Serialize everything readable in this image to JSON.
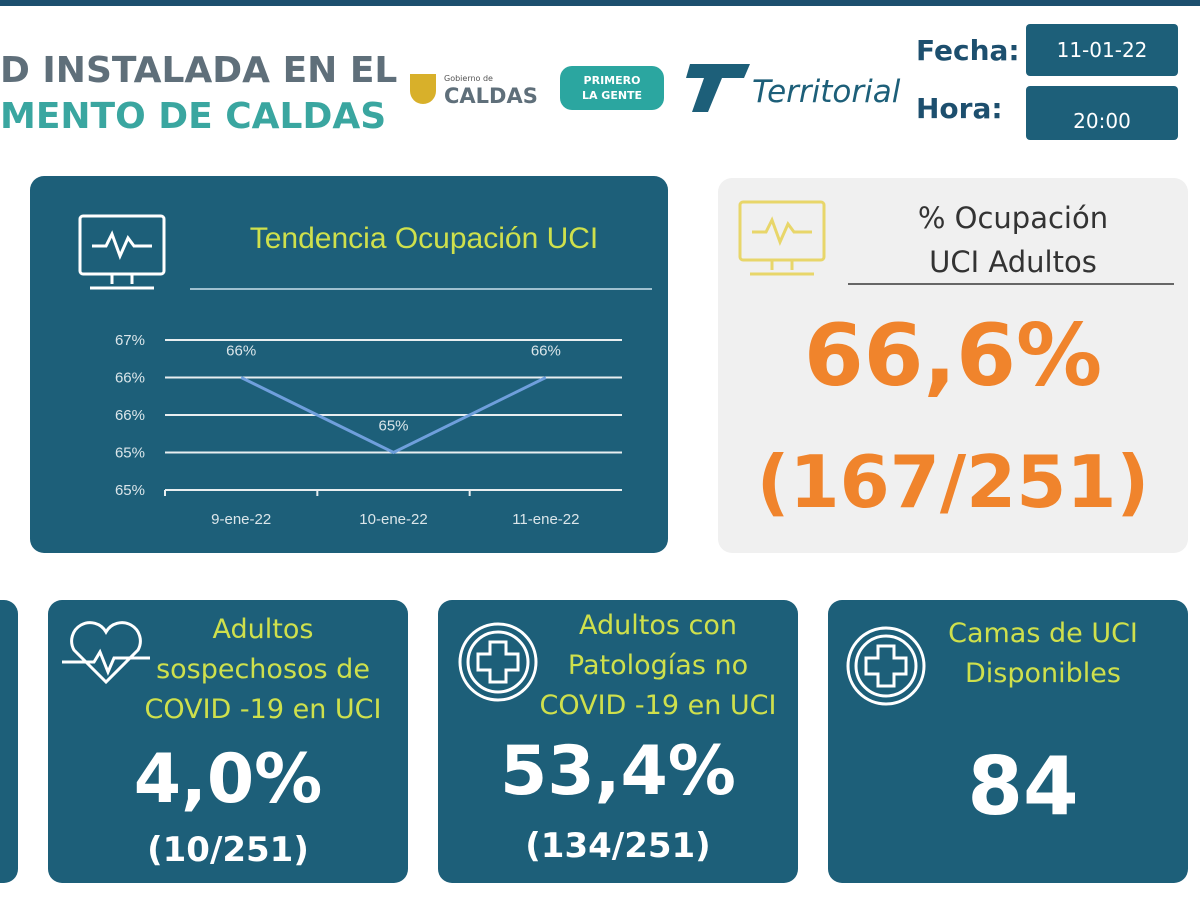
{
  "header": {
    "title_line1": "D INSTALADA EN EL",
    "title_line2": "MENTO DE CALDAS",
    "logo_gob_small": "Gobierno de",
    "logo_gob": "CALDAS",
    "logo_primero": "PRIMERO",
    "logo_gente": "LA GENTE",
    "logo_territorial": "Territorial",
    "fecha_label": "Fecha:",
    "fecha": "11-01-22",
    "hora_label": "Hora:",
    "hora": "20:00"
  },
  "trend": {
    "chart_data": {
      "type": "line",
      "title": "Tendencia Ocupación UCI",
      "categories": [
        "9-ene-22",
        "10-ene-22",
        "11-ene-22"
      ],
      "values": [
        66.2,
        65.4,
        66.2
      ],
      "value_labels": [
        "66%",
        "65%",
        "66%"
      ],
      "color": "#6f9fdc",
      "ylim": [
        65.0,
        66.6
      ],
      "yticks": [
        {
          "value": 65.0,
          "label": "65%"
        },
        {
          "value": 65.4,
          "label": "65%"
        },
        {
          "value": 65.8,
          "label": "66%"
        },
        {
          "value": 66.2,
          "label": "66%"
        },
        {
          "value": 66.6,
          "label": "67%"
        }
      ],
      "grid": true
    }
  },
  "occupancy": {
    "title_line1": "% Ocupación",
    "title_line2": "UCI Adultos",
    "value": "66,6%",
    "fraction": "(167/251)"
  },
  "cards": [
    {
      "label_lines": [
        "Adultos",
        "sospechosos de",
        "COVID -19 en UCI"
      ],
      "value": "4,0%",
      "fraction": "(10/251)"
    },
    {
      "label_lines": [
        "Adultos con",
        "Patologías no",
        "COVID -19 en UCI"
      ],
      "value": "53,4%",
      "fraction": "(134/251)"
    },
    {
      "label_lines": [
        "Camas de UCI",
        "Disponibles"
      ],
      "value": "84"
    }
  ]
}
